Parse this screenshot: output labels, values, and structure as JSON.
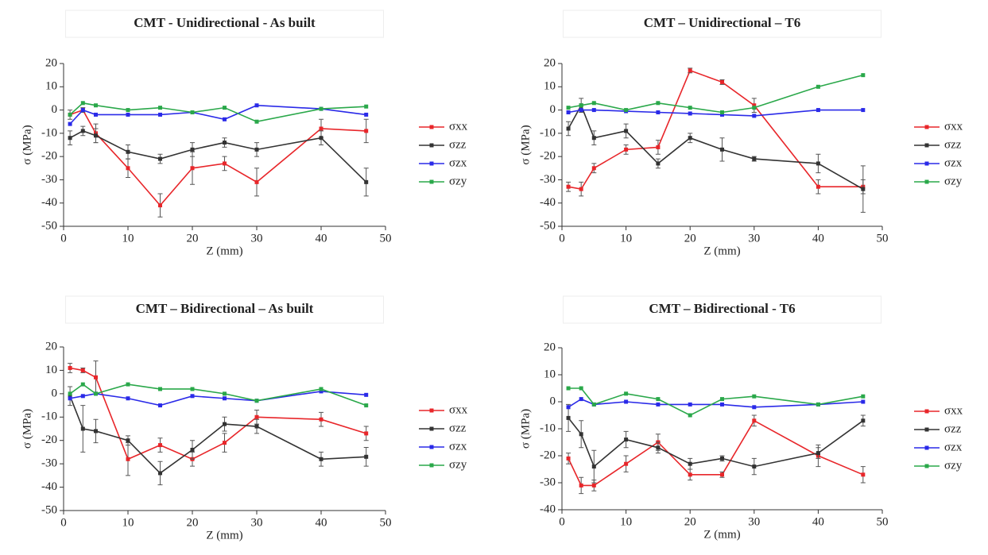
{
  "chart_data": [
    {
      "type": "line",
      "title": "CMT - Unidirectional - As built",
      "xlabel": "Z (mm)",
      "ylabel": "σ (MPa)",
      "x": [
        1,
        3,
        5,
        10,
        15,
        20,
        25,
        30,
        40,
        47
      ],
      "xlim": [
        0,
        50
      ],
      "xticks": [
        0,
        10,
        20,
        30,
        40,
        50
      ],
      "ylim": [
        -50,
        20
      ],
      "yticks": [
        -50,
        -40,
        -30,
        -20,
        -10,
        0,
        10,
        20
      ],
      "series": [
        {
          "name": "σxx",
          "color": "#e8262a",
          "values": [
            -2,
            0,
            -10,
            -25,
            -41,
            -25,
            -23,
            -31,
            -8,
            -9
          ],
          "errors": [
            2,
            1,
            4,
            4,
            5,
            7,
            3,
            6,
            4,
            5
          ]
        },
        {
          "name": "σzz",
          "color": "#333333",
          "values": [
            -12,
            -9,
            -11,
            -18,
            -21,
            -17,
            -14,
            -17,
            -12,
            -31
          ],
          "errors": [
            3,
            2,
            3,
            3,
            2,
            3,
            2,
            3,
            3,
            6
          ]
        },
        {
          "name": "σzx",
          "color": "#2a2ae8",
          "values": [
            -6,
            0,
            -2,
            -2,
            -2,
            -1,
            -4,
            2,
            0.5,
            -2
          ]
        },
        {
          "name": "σzy",
          "color": "#2aa84a",
          "values": [
            -2,
            3,
            2,
            0,
            1,
            -1,
            1,
            -5,
            0.5,
            1.5
          ]
        }
      ]
    },
    {
      "type": "line",
      "title": "CMT – Unidirectional – T6",
      "xlabel": "Z (mm)",
      "ylabel": "σ (MPa)",
      "x": [
        1,
        3,
        5,
        10,
        15,
        20,
        25,
        30,
        40,
        47
      ],
      "xlim": [
        0,
        50
      ],
      "xticks": [
        0,
        10,
        20,
        30,
        40,
        50
      ],
      "ylim": [
        -50,
        20
      ],
      "yticks": [
        -50,
        -40,
        -30,
        -20,
        -10,
        0,
        10,
        20
      ],
      "series": [
        {
          "name": "σxx",
          "color": "#e8262a",
          "values": [
            -33,
            -34,
            -25,
            -17,
            -16,
            17,
            12,
            2,
            -33,
            -33
          ],
          "errors": [
            2,
            3,
            2,
            2,
            3,
            1,
            1,
            3,
            3,
            3
          ]
        },
        {
          "name": "σzz",
          "color": "#333333",
          "values": [
            -8,
            2,
            -12,
            -9,
            -23,
            -12,
            -17,
            -21,
            -23,
            -34
          ],
          "errors": [
            3,
            3,
            3,
            3,
            2,
            2,
            5,
            1,
            4,
            10
          ]
        },
        {
          "name": "σzx",
          "color": "#2a2ae8",
          "values": [
            -1,
            0,
            0,
            -0.5,
            -1,
            -1.5,
            -2,
            -2.5,
            0,
            0
          ]
        },
        {
          "name": "σzy",
          "color": "#2aa84a",
          "values": [
            1,
            2,
            3,
            0,
            3,
            1,
            -1,
            1,
            10,
            15
          ]
        }
      ]
    },
    {
      "type": "line",
      "title": "CMT – Bidirectional – As built",
      "xlabel": "Z (mm)",
      "ylabel": "σ (MPa)",
      "x": [
        1,
        3,
        5,
        10,
        15,
        20,
        25,
        30,
        40,
        47
      ],
      "xlim": [
        0,
        50
      ],
      "xticks": [
        0,
        10,
        20,
        30,
        40,
        50
      ],
      "ylim": [
        -50,
        20
      ],
      "yticks": [
        -50,
        -40,
        -30,
        -20,
        -10,
        0,
        10,
        20
      ],
      "series": [
        {
          "name": "σxx",
          "color": "#e8262a",
          "values": [
            11,
            10,
            7,
            -28,
            -22,
            -28,
            -21,
            -10,
            -11,
            -17
          ],
          "errors": [
            2,
            1,
            7,
            7,
            3,
            3,
            4,
            3,
            3,
            3
          ]
        },
        {
          "name": "σzz",
          "color": "#333333",
          "values": [
            -1,
            -15,
            -16,
            -20,
            -34,
            -24,
            -13,
            -14,
            -28,
            -27
          ],
          "errors": [
            4,
            10,
            5,
            2,
            5,
            4,
            3,
            3,
            3,
            4
          ]
        },
        {
          "name": "σzx",
          "color": "#2a2ae8",
          "values": [
            -2,
            -1,
            0,
            -2,
            -5,
            -1,
            -2,
            -3,
            1,
            -0.5
          ]
        },
        {
          "name": "σzy",
          "color": "#2aa84a",
          "values": [
            0,
            4,
            0,
            4,
            2,
            2,
            0,
            -3,
            2,
            -5
          ]
        }
      ]
    },
    {
      "type": "line",
      "title": "CMT – Bidirectional - T6",
      "xlabel": "Z (mm)",
      "ylabel": "σ (MPa)",
      "x": [
        1,
        3,
        5,
        10,
        15,
        20,
        25,
        30,
        40,
        47
      ],
      "xlim": [
        0,
        50
      ],
      "xticks": [
        0,
        10,
        20,
        30,
        40,
        50
      ],
      "ylim": [
        -40,
        20
      ],
      "yticks": [
        -40,
        -30,
        -20,
        -10,
        0,
        10,
        20
      ],
      "series": [
        {
          "name": "σxx",
          "color": "#e8262a",
          "values": [
            -21,
            -31,
            -31,
            -23,
            -15,
            -27,
            -27,
            -7,
            -20,
            -27
          ],
          "errors": [
            2,
            3,
            2,
            3,
            3,
            2,
            1,
            2,
            4,
            3
          ]
        },
        {
          "name": "σzz",
          "color": "#333333",
          "values": [
            -6,
            -12,
            -24,
            -14,
            -17,
            -23,
            -21,
            -24,
            -19,
            -7
          ],
          "errors": [
            5,
            5,
            6,
            3,
            2,
            2,
            1,
            3,
            2,
            2
          ]
        },
        {
          "name": "σzx",
          "color": "#2a2ae8",
          "values": [
            -2,
            1,
            -1,
            0,
            -1,
            -1,
            -1,
            -2,
            -1,
            0
          ]
        },
        {
          "name": "σzy",
          "color": "#2aa84a",
          "values": [
            5,
            5,
            -1,
            3,
            1,
            -5,
            1,
            2,
            -1,
            2
          ]
        }
      ]
    }
  ]
}
